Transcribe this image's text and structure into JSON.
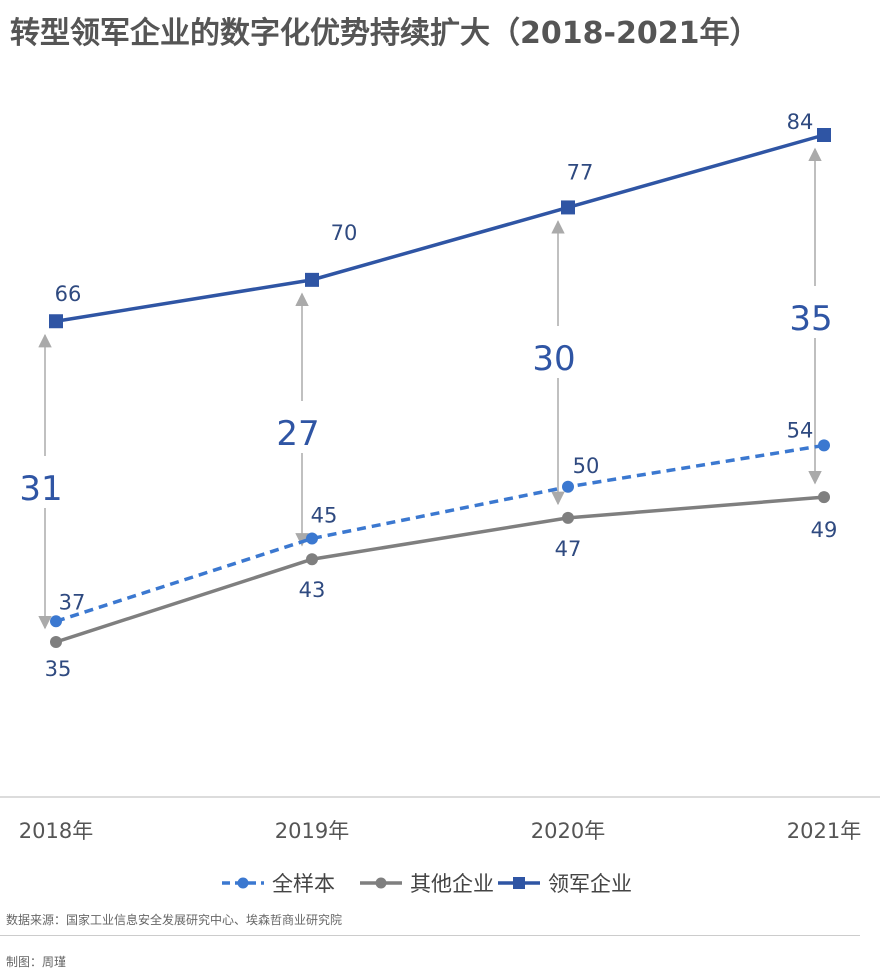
{
  "title": "转型领军企业的数字化优势持续扩大（2018-2021年）",
  "chart_data": {
    "type": "line",
    "categories": [
      "2018年",
      "2019年",
      "2020年",
      "2021年"
    ],
    "series": [
      {
        "name": "全样本",
        "values": [
          37,
          45,
          50,
          54
        ],
        "color": "#3b78d0",
        "style": "dashed",
        "marker": "circle"
      },
      {
        "name": "其他企业",
        "values": [
          35,
          43,
          47,
          49
        ],
        "color": "#7f7f7f",
        "style": "solid",
        "marker": "circle"
      },
      {
        "name": "领军企业",
        "values": [
          66,
          70,
          77,
          84
        ],
        "color": "#2f55a4",
        "style": "solid",
        "marker": "square"
      }
    ],
    "gaps": [
      31,
      27,
      30,
      35
    ],
    "gap_color": "#2f55a4",
    "arrow_color": "#aaaaaa",
    "legend_position": "bottom-center",
    "grid": false
  },
  "source": "数据来源：国家工业信息安全发展研究中心、埃森哲商业研究院",
  "credit": "制图：周瑾"
}
